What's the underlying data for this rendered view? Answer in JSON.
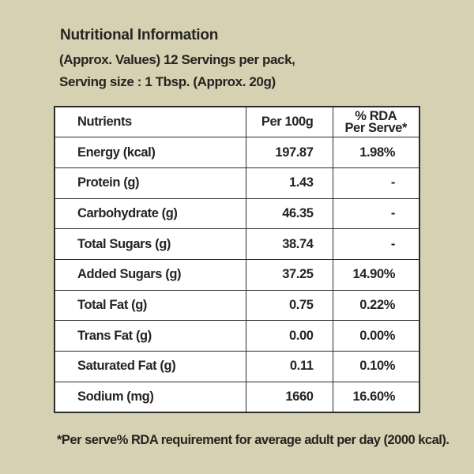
{
  "colors": {
    "background": "#d5d1b2",
    "table-fill": "#ffffff",
    "border": "#2e2c2a",
    "text": "#262320"
  },
  "header": {
    "title": "Nutritional Information",
    "subtitle_line1": "(Approx. Values) 12 Servings per pack,",
    "subtitle_line2": "Serving size : 1 Tbsp. (Approx. 20g)"
  },
  "table": {
    "columns": {
      "nutrients": "Nutrients",
      "per_100g": "Per 100g",
      "rda_line1": "% RDA",
      "rda_line2": "Per Serve*"
    },
    "rows": [
      {
        "nutrient": "Energy (kcal)",
        "per_100g": "197.87",
        "rda_per_serve": "1.98%"
      },
      {
        "nutrient": "Protein (g)",
        "per_100g": "1.43",
        "rda_per_serve": "-"
      },
      {
        "nutrient": "Carbohydrate (g)",
        "per_100g": "46.35",
        "rda_per_serve": "-"
      },
      {
        "nutrient": "Total Sugars (g)",
        "per_100g": "38.74",
        "rda_per_serve": "-"
      },
      {
        "nutrient": "Added Sugars (g)",
        "per_100g": "37.25",
        "rda_per_serve": "14.90%"
      },
      {
        "nutrient": "Total Fat (g)",
        "per_100g": "0.75",
        "rda_per_serve": "0.22%"
      },
      {
        "nutrient": "Trans Fat (g)",
        "per_100g": "0.00",
        "rda_per_serve": "0.00%"
      },
      {
        "nutrient": "Saturated Fat (g)",
        "per_100g": "0.11",
        "rda_per_serve": "0.10%"
      },
      {
        "nutrient": "Sodium (mg)",
        "per_100g": "1660",
        "rda_per_serve": "16.60%"
      }
    ]
  },
  "footnote": "*Per serve% RDA requirement for average adult per day (2000 kcal)."
}
